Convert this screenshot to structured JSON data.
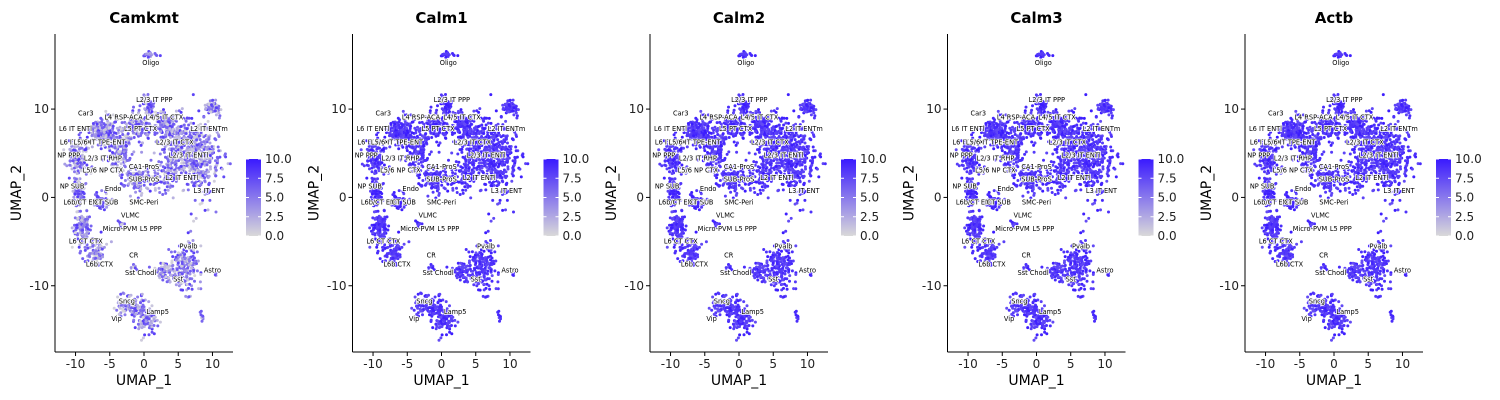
{
  "figure": {
    "color_low": "#d9d9d9",
    "color_high": "#3a1aff"
  },
  "chart_data": [
    {
      "type": "scatter",
      "title": "Camkmt",
      "xlabel": "UMAP_1",
      "ylabel": "UMAP_2",
      "xticks": [
        -10,
        -5,
        0,
        5,
        10
      ],
      "xtick_labels": [
        "-10",
        "-5",
        "0",
        "5",
        "10"
      ],
      "yticks": [
        -10,
        0,
        10
      ],
      "ytick_labels": [
        "-10",
        "0",
        "10"
      ],
      "xlim": [
        -13,
        13
      ],
      "ylim": [
        -17.5,
        18.5
      ],
      "colorbar": {
        "min": 0,
        "max": 10,
        "ticks": [
          "0.0",
          "2.5",
          "5.0",
          "7.5",
          "10.0"
        ]
      },
      "expression": "sparse"
    },
    {
      "type": "scatter",
      "title": "Calm1",
      "xlabel": "UMAP_1",
      "ylabel": "UMAP_2",
      "xticks": [
        -10,
        -5,
        0,
        5,
        10
      ],
      "xtick_labels": [
        "-10",
        "-5",
        "0",
        "5",
        "10"
      ],
      "yticks": [
        -10,
        0,
        10
      ],
      "ytick_labels": [
        "-10",
        "0",
        "10"
      ],
      "xlim": [
        -13,
        13
      ],
      "ylim": [
        -17.5,
        18.5
      ],
      "colorbar": {
        "min": 0,
        "max": 10,
        "ticks": [
          "0.0",
          "2.5",
          "5.0",
          "7.5",
          "10.0"
        ]
      },
      "expression": "high"
    },
    {
      "type": "scatter",
      "title": "Calm2",
      "xlabel": "UMAP_1",
      "ylabel": "UMAP_2",
      "xticks": [
        -10,
        -5,
        0,
        5,
        10
      ],
      "xtick_labels": [
        "-10",
        "-5",
        "0",
        "5",
        "10"
      ],
      "yticks": [
        -10,
        0,
        10
      ],
      "ytick_labels": [
        "-10",
        "0",
        "10"
      ],
      "xlim": [
        -13,
        13
      ],
      "ylim": [
        -17.5,
        18.5
      ],
      "colorbar": {
        "min": 0,
        "max": 10,
        "ticks": [
          "0.0",
          "2.5",
          "5.0",
          "7.5",
          "10.0"
        ]
      },
      "expression": "high"
    },
    {
      "type": "scatter",
      "title": "Calm3",
      "xlabel": "UMAP_1",
      "ylabel": "UMAP_2",
      "xticks": [
        -10,
        -5,
        0,
        5,
        10
      ],
      "xtick_labels": [
        "-10",
        "-5",
        "0",
        "5",
        "10"
      ],
      "yticks": [
        -10,
        0,
        10
      ],
      "ytick_labels": [
        "-10",
        "0",
        "10"
      ],
      "xlim": [
        -13,
        13
      ],
      "ylim": [
        -17.5,
        18.5
      ],
      "colorbar": {
        "min": 0,
        "max": 10,
        "ticks": [
          "0.0",
          "2.5",
          "5.0",
          "7.5",
          "10.0"
        ]
      },
      "expression": "high"
    },
    {
      "type": "scatter",
      "title": "Actb",
      "xlabel": "UMAP_1",
      "ylabel": "UMAP_2",
      "xticks": [
        -10,
        -5,
        0,
        5,
        10
      ],
      "xtick_labels": [
        "-10",
        "-5",
        "0",
        "5",
        "10"
      ],
      "yticks": [
        -10,
        0,
        10
      ],
      "ytick_labels": [
        "-10",
        "0",
        "10"
      ],
      "xlim": [
        -13,
        13
      ],
      "ylim": [
        -17.5,
        18.5
      ],
      "colorbar": {
        "min": 0,
        "max": 10,
        "ticks": [
          "0.0",
          "2.5",
          "5.0",
          "7.5",
          "10.0"
        ]
      },
      "expression": "high"
    }
  ],
  "cluster_labels": [
    {
      "text": "Oligo",
      "x": 1.0,
      "y": 15.0
    },
    {
      "text": "L2/3 IT PPP",
      "x": 1.5,
      "y": 10.8
    },
    {
      "text": "Car3",
      "x": -8.5,
      "y": 9.3
    },
    {
      "text": "L4 RSP-ACA",
      "x": -3.0,
      "y": 8.8
    },
    {
      "text": "L4/5 IT CTX",
      "x": 3.0,
      "y": 8.8
    },
    {
      "text": "L6 IT ENTl",
      "x": -10.0,
      "y": 7.5
    },
    {
      "text": "L5 PT CTX",
      "x": -0.5,
      "y": 7.5
    },
    {
      "text": "L2 IT ENTm",
      "x": 9.5,
      "y": 7.5
    },
    {
      "text": "L6 IT CTX",
      "x": -10.0,
      "y": 6.0
    },
    {
      "text": "L5/6 IT TPE-ENT",
      "x": -6.5,
      "y": 6.0
    },
    {
      "text": "L2/3 IT CTX",
      "x": 4.5,
      "y": 6.0
    },
    {
      "text": "NP PPP",
      "x": -11.0,
      "y": 4.5
    },
    {
      "text": "L2/3 IT RHP",
      "x": -6.0,
      "y": 4.2
    },
    {
      "text": "L2/3 IT ENTl",
      "x": 6.5,
      "y": 4.5
    },
    {
      "text": "CA1-ProS",
      "x": 0.0,
      "y": 3.2
    },
    {
      "text": "L5/6 NP CTX",
      "x": -6.0,
      "y": 2.8
    },
    {
      "text": "SUB-ProS",
      "x": 0.0,
      "y": 1.8
    },
    {
      "text": "L2 IT ENTl",
      "x": 5.5,
      "y": 2.0
    },
    {
      "text": "L3 IT ENT",
      "x": 9.5,
      "y": 0.5
    },
    {
      "text": "NP SUB",
      "x": -10.5,
      "y": 1.0
    },
    {
      "text": "Endo",
      "x": -4.5,
      "y": 0.7
    },
    {
      "text": "L6b/CT ENT",
      "x": -9.0,
      "y": -0.8
    },
    {
      "text": "CT SUB",
      "x": -5.5,
      "y": -0.8
    },
    {
      "text": "SMC-Peri",
      "x": 0.0,
      "y": -0.8
    },
    {
      "text": "VLMC",
      "x": -2.0,
      "y": -2.3
    },
    {
      "text": "Micro-PVM",
      "x": -3.5,
      "y": -3.8
    },
    {
      "text": "L5 PPP",
      "x": 1.0,
      "y": -3.8
    },
    {
      "text": "L6 CT CTX",
      "x": -8.5,
      "y": -5.2
    },
    {
      "text": "Pvalb",
      "x": 6.5,
      "y": -5.8
    },
    {
      "text": "CR",
      "x": -1.5,
      "y": -6.8
    },
    {
      "text": "L6b CTX",
      "x": -6.5,
      "y": -7.8
    },
    {
      "text": "Sst Chodl",
      "x": -0.5,
      "y": -8.8
    },
    {
      "text": "Astro",
      "x": 10.0,
      "y": -8.5
    },
    {
      "text": "Sst",
      "x": 5.0,
      "y": -9.5
    },
    {
      "text": "Sncg",
      "x": -2.5,
      "y": -12.0
    },
    {
      "text": "Lamp5",
      "x": 2.0,
      "y": -13.2
    },
    {
      "text": "Vip",
      "x": -4.0,
      "y": -14.0
    }
  ]
}
